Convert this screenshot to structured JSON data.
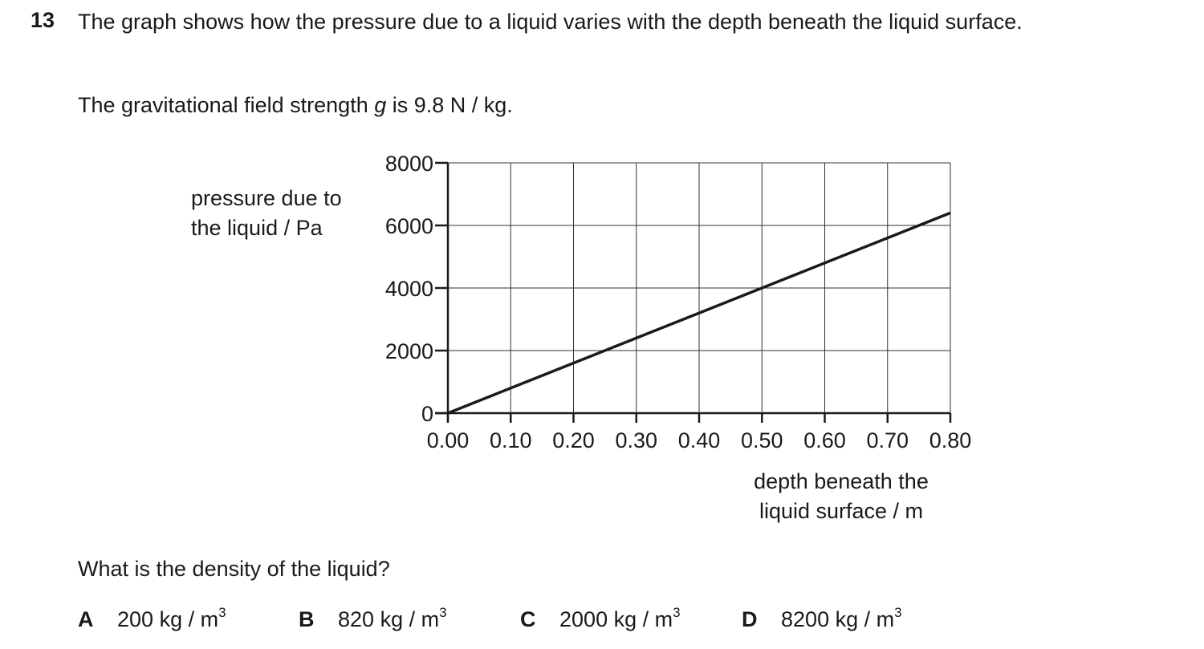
{
  "question": {
    "number": "13",
    "stem": "The graph shows how the pressure due to a liquid varies with the depth beneath the liquid surface.",
    "g_prefix": "The gravitational field strength ",
    "g_symbol": "g",
    "g_suffix": " is 9.8 N / kg.",
    "prompt": "What is the density of the liquid?"
  },
  "options": [
    {
      "letter": "A",
      "value": "200 kg / m",
      "sup": "3"
    },
    {
      "letter": "B",
      "value": "820 kg / m",
      "sup": "3"
    },
    {
      "letter": "C",
      "value": "2000 kg / m",
      "sup": "3"
    },
    {
      "letter": "D",
      "value": "8200 kg / m",
      "sup": "3"
    }
  ],
  "chart_data": {
    "type": "line",
    "ylabel_lines": [
      "pressure due to",
      "the liquid / Pa"
    ],
    "xlabel_lines": [
      "depth beneath the",
      "liquid surface / m"
    ],
    "xlim": [
      0,
      0.8
    ],
    "ylim": [
      0,
      8000
    ],
    "x_ticks": [
      0.0,
      0.1,
      0.2,
      0.3,
      0.4,
      0.5,
      0.6,
      0.7,
      0.8
    ],
    "x_tick_labels": [
      "0.00",
      "0.10",
      "0.20",
      "0.30",
      "0.40",
      "0.50",
      "0.60",
      "0.70",
      "0.80"
    ],
    "y_ticks": [
      0,
      2000,
      4000,
      6000,
      8000
    ],
    "y_tick_labels": [
      "0",
      "2000",
      "4000",
      "6000",
      "8000"
    ],
    "grid": true,
    "series": [
      {
        "x": [
          0.0,
          0.8
        ],
        "y": [
          0,
          6400
        ]
      }
    ]
  }
}
